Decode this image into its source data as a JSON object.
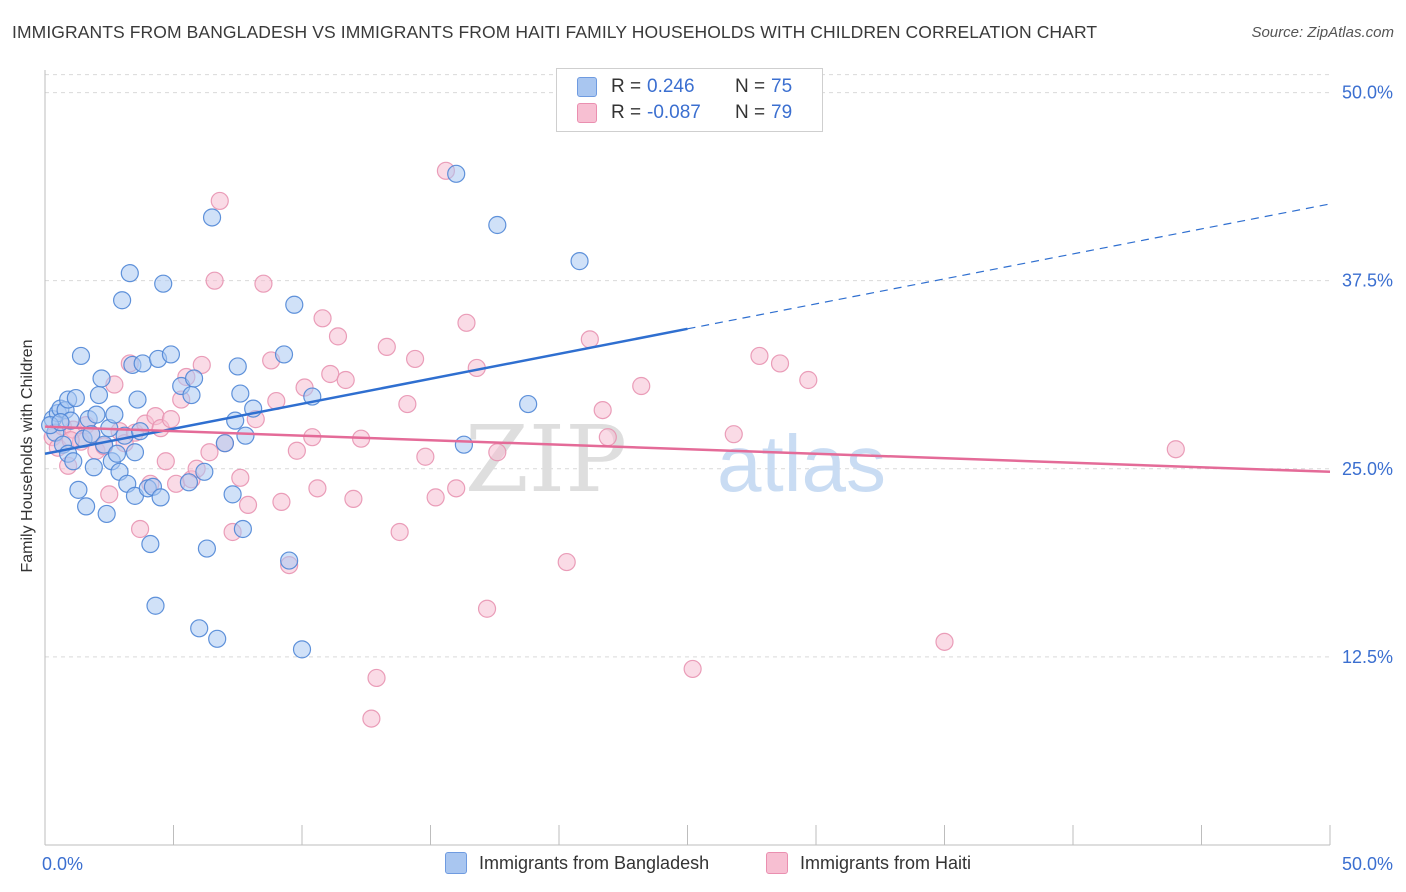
{
  "title": "IMMIGRANTS FROM BANGLADESH VS IMMIGRANTS FROM HAITI FAMILY HOUSEHOLDS WITH CHILDREN CORRELATION CHART",
  "source": "Source: ZipAtlas.com",
  "watermark": {
    "zip": "ZIP",
    "atlas": "atlas"
  },
  "legend": {
    "r_label": "R =",
    "n_label": "N =",
    "rows": [
      {
        "r": "0.246",
        "n": "75",
        "color": "#a9c6f0",
        "border": "#6f9be0"
      },
      {
        "r": "-0.087",
        "n": "79",
        "color": "#f7bfd2",
        "border": "#ea8fb0"
      }
    ]
  },
  "colors": {
    "series1_fill": "#aac8f2",
    "series1_stroke": "#4f86d6",
    "series1_line": "#2f6fd0",
    "series2_fill": "#f6bed1",
    "series2_stroke": "#e893b1",
    "series2_line": "#e46b98",
    "grid": "#d9d9d9",
    "tick_label": "#3b6fd0"
  },
  "chart_data": {
    "type": "scatter",
    "title": "IMMIGRANTS FROM BANGLADESH VS IMMIGRANTS FROM HAITI FAMILY HOUSEHOLDS WITH CHILDREN CORRELATION CHART",
    "xlabel": "",
    "ylabel": "Family Households with Children",
    "xlim": [
      0,
      50
    ],
    "ylim": [
      0,
      51.5
    ],
    "x_tick_labels": [
      "0.0%",
      "50.0%"
    ],
    "y_ticks": [
      12.5,
      25.0,
      37.5,
      50.0
    ],
    "y_tick_labels": [
      "12.5%",
      "25.0%",
      "37.5%",
      "50.0%"
    ],
    "grid": true,
    "legend_placement": "top-center",
    "series": [
      {
        "name": "Immigrants from Bangladesh",
        "trend": {
          "x": [
            0,
            25
          ],
          "y": [
            26.0,
            34.3
          ],
          "dashed_to": [
            50,
            42.6
          ]
        },
        "points": [
          [
            0.3,
            28.3
          ],
          [
            0.4,
            27.4
          ],
          [
            0.5,
            28.7
          ],
          [
            0.6,
            29.0
          ],
          [
            0.7,
            26.6
          ],
          [
            0.8,
            28.9
          ],
          [
            0.9,
            29.6
          ],
          [
            0.9,
            26.0
          ],
          [
            1.0,
            28.2
          ],
          [
            1.1,
            25.5
          ],
          [
            1.2,
            29.7
          ],
          [
            1.3,
            23.6
          ],
          [
            1.4,
            32.5
          ],
          [
            1.5,
            27.0
          ],
          [
            1.6,
            22.5
          ],
          [
            1.7,
            28.3
          ],
          [
            1.8,
            27.3
          ],
          [
            1.9,
            25.1
          ],
          [
            2.0,
            28.6
          ],
          [
            2.1,
            29.9
          ],
          [
            2.2,
            31.0
          ],
          [
            2.3,
            26.6
          ],
          [
            2.4,
            22.0
          ],
          [
            2.5,
            27.7
          ],
          [
            2.6,
            25.5
          ],
          [
            2.7,
            28.6
          ],
          [
            2.8,
            26.0
          ],
          [
            2.9,
            24.8
          ],
          [
            3.0,
            36.2
          ],
          [
            3.1,
            27.2
          ],
          [
            3.2,
            24.0
          ],
          [
            3.3,
            38.0
          ],
          [
            3.4,
            31.9
          ],
          [
            3.5,
            23.2
          ],
          [
            3.5,
            26.1
          ],
          [
            3.6,
            29.6
          ],
          [
            3.7,
            27.5
          ],
          [
            3.8,
            32.0
          ],
          [
            4.0,
            23.7
          ],
          [
            4.1,
            20.0
          ],
          [
            4.2,
            23.8
          ],
          [
            4.3,
            15.9
          ],
          [
            4.4,
            32.3
          ],
          [
            4.5,
            23.1
          ],
          [
            4.6,
            37.3
          ],
          [
            4.9,
            32.6
          ],
          [
            5.3,
            30.5
          ],
          [
            5.6,
            24.1
          ],
          [
            5.7,
            29.9
          ],
          [
            5.8,
            31.0
          ],
          [
            6.0,
            14.4
          ],
          [
            6.2,
            24.8
          ],
          [
            6.3,
            19.7
          ],
          [
            6.5,
            41.7
          ],
          [
            6.7,
            13.7
          ],
          [
            7.0,
            26.7
          ],
          [
            7.3,
            23.3
          ],
          [
            7.4,
            28.2
          ],
          [
            7.5,
            31.8
          ],
          [
            7.6,
            30.0
          ],
          [
            7.7,
            21.0
          ],
          [
            7.8,
            27.2
          ],
          [
            8.1,
            29.0
          ],
          [
            9.3,
            32.6
          ],
          [
            9.5,
            18.9
          ],
          [
            9.7,
            35.9
          ],
          [
            10.0,
            13.0
          ],
          [
            10.4,
            29.8
          ],
          [
            16.0,
            44.6
          ],
          [
            16.3,
            26.6
          ],
          [
            17.6,
            41.2
          ],
          [
            18.8,
            29.3
          ],
          [
            20.8,
            38.8
          ],
          [
            0.2,
            27.9
          ],
          [
            0.6,
            28.1
          ]
        ]
      },
      {
        "name": "Immigrants from Haiti",
        "trend": {
          "x": [
            0,
            50
          ],
          "y": [
            27.8,
            24.8
          ]
        },
        "points": [
          [
            0.3,
            27.1
          ],
          [
            0.5,
            26.4
          ],
          [
            0.7,
            27.8
          ],
          [
            0.9,
            25.2
          ],
          [
            1.1,
            27.6
          ],
          [
            1.4,
            26.8
          ],
          [
            1.6,
            27.9
          ],
          [
            1.8,
            27.3
          ],
          [
            2.0,
            26.2
          ],
          [
            2.3,
            26.5
          ],
          [
            2.5,
            23.3
          ],
          [
            2.7,
            30.6
          ],
          [
            2.9,
            27.5
          ],
          [
            3.1,
            26.7
          ],
          [
            3.3,
            32.0
          ],
          [
            3.5,
            27.4
          ],
          [
            3.7,
            21.0
          ],
          [
            3.9,
            28.0
          ],
          [
            4.1,
            24.0
          ],
          [
            4.3,
            28.5
          ],
          [
            4.5,
            27.7
          ],
          [
            4.7,
            25.5
          ],
          [
            4.9,
            28.3
          ],
          [
            5.1,
            24.0
          ],
          [
            5.3,
            29.6
          ],
          [
            5.5,
            31.1
          ],
          [
            5.7,
            24.3
          ],
          [
            5.9,
            25.0
          ],
          [
            6.1,
            31.9
          ],
          [
            6.4,
            26.1
          ],
          [
            6.6,
            37.5
          ],
          [
            6.8,
            42.8
          ],
          [
            7.0,
            26.7
          ],
          [
            7.3,
            20.8
          ],
          [
            7.6,
            24.4
          ],
          [
            7.9,
            22.6
          ],
          [
            8.2,
            28.3
          ],
          [
            8.5,
            37.3
          ],
          [
            8.8,
            32.2
          ],
          [
            9.0,
            29.5
          ],
          [
            9.2,
            22.8
          ],
          [
            9.5,
            18.6
          ],
          [
            9.8,
            26.2
          ],
          [
            10.1,
            30.4
          ],
          [
            10.4,
            27.1
          ],
          [
            10.6,
            23.7
          ],
          [
            10.8,
            35.0
          ],
          [
            11.1,
            31.3
          ],
          [
            11.4,
            33.8
          ],
          [
            11.7,
            30.9
          ],
          [
            12.0,
            23.0
          ],
          [
            12.3,
            27.0
          ],
          [
            12.7,
            8.4
          ],
          [
            12.9,
            11.1
          ],
          [
            13.3,
            33.1
          ],
          [
            13.8,
            20.8
          ],
          [
            14.1,
            29.3
          ],
          [
            14.4,
            32.3
          ],
          [
            14.8,
            25.8
          ],
          [
            15.2,
            23.1
          ],
          [
            15.6,
            44.8
          ],
          [
            16.0,
            23.7
          ],
          [
            16.4,
            34.7
          ],
          [
            16.8,
            31.7
          ],
          [
            17.2,
            15.7
          ],
          [
            17.6,
            26.1
          ],
          [
            20.3,
            18.8
          ],
          [
            21.2,
            33.6
          ],
          [
            21.7,
            28.9
          ],
          [
            21.9,
            27.1
          ],
          [
            23.2,
            30.5
          ],
          [
            25.2,
            11.7
          ],
          [
            26.8,
            27.3
          ],
          [
            27.8,
            32.5
          ],
          [
            28.6,
            32.0
          ],
          [
            29.7,
            30.9
          ],
          [
            35.0,
            13.5
          ],
          [
            44.0,
            26.3
          ],
          [
            1.0,
            26.9
          ]
        ]
      }
    ]
  }
}
